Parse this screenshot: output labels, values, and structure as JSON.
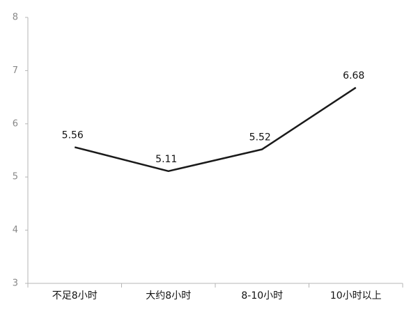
{
  "chart_data": {
    "type": "line",
    "categories": [
      "不足8小时",
      "大约8小时",
      "8-10小时",
      "10小时以上"
    ],
    "values": [
      5.56,
      5.11,
      5.52,
      6.68
    ],
    "color": "#1a1a1a",
    "ylim": [
      3,
      8
    ],
    "yticks": [
      3,
      4,
      5,
      6,
      7,
      8
    ],
    "grid": false
  }
}
